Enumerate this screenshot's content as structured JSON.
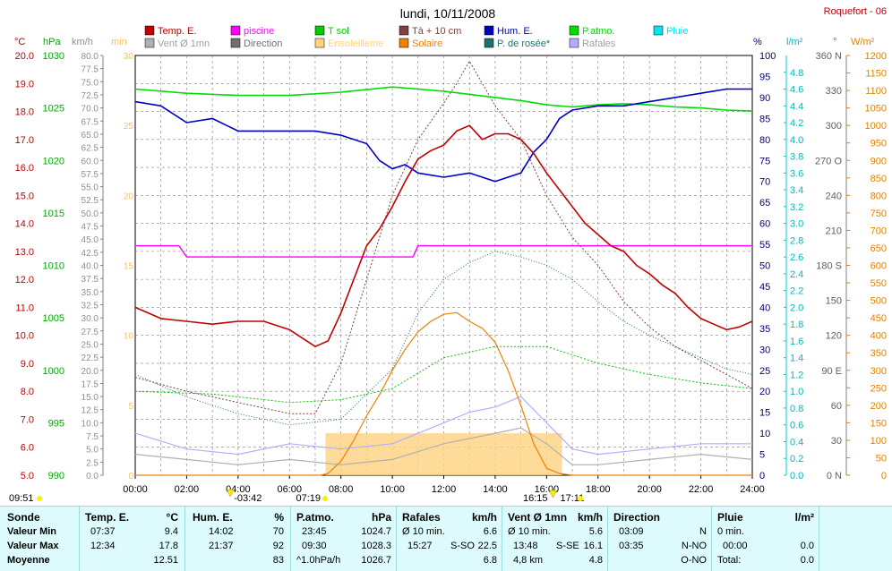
{
  "header": {
    "title": "lundi, 10/11/2008",
    "station": "Roquefort - 06"
  },
  "legend": [
    {
      "label": "Temp. E.",
      "color": "#c00000"
    },
    {
      "label": "piscine",
      "color": "#ff00ff"
    },
    {
      "label": "T sol",
      "color": "#00cc00"
    },
    {
      "label": "Tà + 10 cm",
      "color": "#804040"
    },
    {
      "label": "Hum. E.",
      "color": "#0000c0"
    },
    {
      "label": "P.atmo.",
      "color": "#00dd00"
    },
    {
      "label": "Pluie",
      "color": "#00e5ee"
    },
    {
      "label": "Vent Ø 1mn",
      "color": "#b0b0b0"
    },
    {
      "label": "Direction",
      "color": "#707070"
    },
    {
      "label": "Ensoleilleme",
      "color": "#ffd27f"
    },
    {
      "label": "Solaire",
      "color": "#f08000"
    },
    {
      "label": "P. de rosée*",
      "color": "#207070"
    },
    {
      "label": "Rafales",
      "color": "#b0b0ff"
    }
  ],
  "axis_units": {
    "temp": "°C",
    "press": "hPa",
    "wind": "km/h",
    "minutes": "min",
    "hum": "%",
    "rain": "l/m²",
    "dir": "°",
    "solar": "W/m²"
  },
  "x_ticks": [
    "00:00",
    "02:00",
    "04:00",
    "06:00",
    "08:00",
    "10:00",
    "12:00",
    "14:00",
    "16:00",
    "18:00",
    "20:00",
    "22:00",
    "24:00"
  ],
  "sun_events": {
    "left_time": "09:51",
    "moonset": "03:42",
    "sunrise": "07:19",
    "sunset_a": "16:15",
    "sunset_b": "17:11"
  },
  "chart_data": {
    "type": "line",
    "title": "lundi, 10/11/2008",
    "x_range": [
      "00:00",
      "24:00"
    ],
    "axes": {
      "temp_c": [
        5.0,
        20.0
      ],
      "pressure_hpa": [
        990,
        1030
      ],
      "wind_kmh": [
        0,
        80
      ],
      "minutes": [
        0,
        30
      ],
      "humidity_pct": [
        0,
        100
      ],
      "rain_lm2": [
        0,
        5.0
      ],
      "direction_deg": [
        0,
        360
      ],
      "solar_wm2": [
        0,
        1200
      ]
    },
    "grid": true,
    "series": [
      {
        "name": "Temp. E.",
        "unit": "°C",
        "x": [
          0,
          1,
          2,
          3,
          4,
          5,
          6,
          7,
          7.5,
          8,
          8.5,
          9,
          9.5,
          10,
          10.5,
          11,
          11.5,
          12,
          12.5,
          13,
          13.5,
          14,
          14.5,
          15,
          15.5,
          16,
          16.5,
          17,
          17.5,
          18,
          18.5,
          19,
          19.5,
          20,
          20.5,
          21,
          21.5,
          22,
          22.5,
          23,
          23.5,
          24
        ],
        "y": [
          11.0,
          10.6,
          10.5,
          10.4,
          10.5,
          10.5,
          10.2,
          9.6,
          9.8,
          10.8,
          12.0,
          13.2,
          13.8,
          14.6,
          15.5,
          16.3,
          16.6,
          16.8,
          17.3,
          17.5,
          17.0,
          17.2,
          17.2,
          17.0,
          16.5,
          15.8,
          15.2,
          14.6,
          14.0,
          13.6,
          13.2,
          13.0,
          12.5,
          12.2,
          11.8,
          11.5,
          11.0,
          10.6,
          10.4,
          10.2,
          10.3,
          10.5
        ]
      },
      {
        "name": "piscine",
        "unit": "°C",
        "x": [
          0,
          1.7,
          2,
          10.8,
          11,
          13.5,
          14.5,
          24
        ],
        "y": [
          13.2,
          13.2,
          12.8,
          12.8,
          13.2,
          13.2,
          13.2,
          13.2
        ]
      },
      {
        "name": "T sol",
        "unit": "°C",
        "x": [
          0,
          3,
          6,
          8,
          10,
          12,
          14,
          16,
          18,
          20,
          22,
          24
        ],
        "y": [
          8.0,
          7.9,
          7.6,
          7.7,
          8.1,
          9.2,
          9.6,
          9.6,
          9.0,
          8.6,
          8.3,
          8.1
        ]
      },
      {
        "name": "Tà + 10 cm",
        "unit": "°C",
        "x": [
          0,
          2,
          4,
          6,
          7,
          8,
          9,
          10,
          11,
          12,
          12.5,
          13,
          13.5,
          14,
          15,
          16,
          17,
          18,
          19,
          20,
          21,
          22,
          23,
          24
        ],
        "y": [
          8.5,
          8.0,
          7.6,
          7.2,
          7.2,
          9.0,
          12.0,
          15.0,
          17.0,
          18.3,
          19.0,
          19.8,
          19.0,
          18.2,
          17.0,
          15.0,
          13.5,
          12.5,
          11.2,
          10.3,
          9.6,
          9.1,
          8.6,
          8.1
        ]
      },
      {
        "name": "Hum. E.",
        "unit": "%",
        "x": [
          0,
          1,
          2,
          3,
          4,
          5,
          6,
          7,
          8,
          9,
          9.5,
          10,
          10.5,
          11,
          12,
          13,
          14,
          15,
          15.5,
          16,
          16.5,
          17,
          18,
          19,
          20,
          21,
          22,
          23,
          24
        ],
        "y": [
          89,
          88,
          84,
          85,
          82,
          82,
          82,
          82,
          81,
          79,
          75,
          73,
          74,
          72,
          71,
          72,
          70,
          72,
          77,
          80,
          85,
          87,
          88,
          88,
          89,
          90,
          91,
          92,
          92
        ]
      },
      {
        "name": "P.atmo.",
        "unit": "hPa",
        "x": [
          0,
          2,
          4,
          6,
          8,
          10,
          11,
          12,
          13,
          14,
          15,
          16,
          17,
          18,
          19,
          20,
          21,
          22,
          23,
          24
        ],
        "y": [
          1026.8,
          1026.4,
          1026.2,
          1026.2,
          1026.5,
          1027.0,
          1026.8,
          1026.6,
          1026.3,
          1026.0,
          1025.7,
          1025.3,
          1025.1,
          1025.3,
          1025.4,
          1025.3,
          1025.1,
          1025.0,
          1024.8,
          1024.7
        ]
      },
      {
        "name": "P. de rosée*",
        "unit": "°C",
        "x": [
          0,
          2,
          4,
          6,
          8,
          10,
          11,
          12,
          13,
          14,
          15,
          16,
          17,
          18,
          19,
          20,
          21,
          22,
          23,
          24
        ],
        "y": [
          8.6,
          7.8,
          7.2,
          6.8,
          7.0,
          8.8,
          10.8,
          12.0,
          12.6,
          13.0,
          12.8,
          12.5,
          12.0,
          11.2,
          10.5,
          10.0,
          9.6,
          9.2,
          8.8,
          8.6
        ]
      },
      {
        "name": "Solaire",
        "unit": "W/m²",
        "x": [
          0,
          7.2,
          7.5,
          8,
          8.5,
          9,
          9.5,
          10,
          10.5,
          11,
          11.5,
          12,
          12.5,
          13,
          13.5,
          14,
          14.5,
          15,
          15.5,
          16,
          16.5,
          17,
          24
        ],
        "y": [
          0,
          0,
          5,
          40,
          100,
          170,
          230,
          300,
          360,
          410,
          440,
          460,
          465,
          440,
          420,
          380,
          300,
          200,
          90,
          20,
          5,
          0,
          0
        ]
      },
      {
        "name": "Rafales",
        "unit": "km/h",
        "x": [
          0,
          2,
          4,
          6,
          8,
          10,
          12,
          13,
          14,
          15,
          16,
          17,
          18,
          20,
          22,
          24
        ],
        "y": [
          8,
          5,
          4,
          6,
          5,
          6,
          10,
          12,
          13,
          15,
          10,
          5,
          4,
          5,
          6,
          6
        ]
      },
      {
        "name": "Vent Ø 1mn",
        "unit": "km/h",
        "x": [
          0,
          2,
          4,
          6,
          8,
          10,
          12,
          13,
          14,
          15,
          16,
          17,
          18,
          20,
          22,
          24
        ],
        "y": [
          4,
          3,
          2,
          3,
          2,
          3,
          6,
          7,
          8,
          9,
          6,
          2,
          2,
          3,
          4,
          3
        ]
      }
    ]
  },
  "summary": {
    "col1": {
      "h1": "Sonde",
      "r1": "Valeur Min",
      "r2": "Valeur Max",
      "r3": "Moyenne"
    },
    "temp": {
      "h": "Temp. E.",
      "u": "°C",
      "min_t": "07:37",
      "min_v": "9.4",
      "max_t": "12:34",
      "max_v": "17.8",
      "avg": "12.51"
    },
    "hum": {
      "h": "Hum. E.",
      "u": "%",
      "min_t": "14:02",
      "min_v": "70",
      "max_t": "21:37",
      "max_v": "92",
      "avg": "83"
    },
    "press": {
      "h": "P.atmo.",
      "u": "hPa",
      "min_t": "23:45",
      "min_v": "1024.7",
      "max_t": "09:30",
      "max_v": "1028.3",
      "avg_l": "^1.0hPa/h",
      "avg": "1026.7"
    },
    "gust": {
      "h": "Rafales",
      "u": "km/h",
      "r1_l": "Ø 10 min.",
      "r1_v": "6.6",
      "r2_t": "15:27",
      "r2_d": "S-SO",
      "r2_v": "22.5",
      "avg": "6.8"
    },
    "wind": {
      "h": "Vent Ø 1mn",
      "u": "km/h",
      "r1_l": "Ø 10 min.",
      "r1_v": "5.6",
      "r2_t": "13:48",
      "r2_d": "S-SE",
      "r2_v": "16.1",
      "r3_l": "4,8 km",
      "r3_v": "4.8"
    },
    "dir": {
      "h": "Direction",
      "r1_t": "03:09",
      "r1_v": "N",
      "r2_t": "03:35",
      "r2_v": "N-NO",
      "r3_v": "O-NO"
    },
    "rain": {
      "h": "Pluie",
      "u": "l/m²",
      "r1_l": "0 min.",
      "r2_t": "00:00",
      "r2_v": "0.0",
      "r3_l": "Total:",
      "r3_v": "0.0"
    }
  }
}
